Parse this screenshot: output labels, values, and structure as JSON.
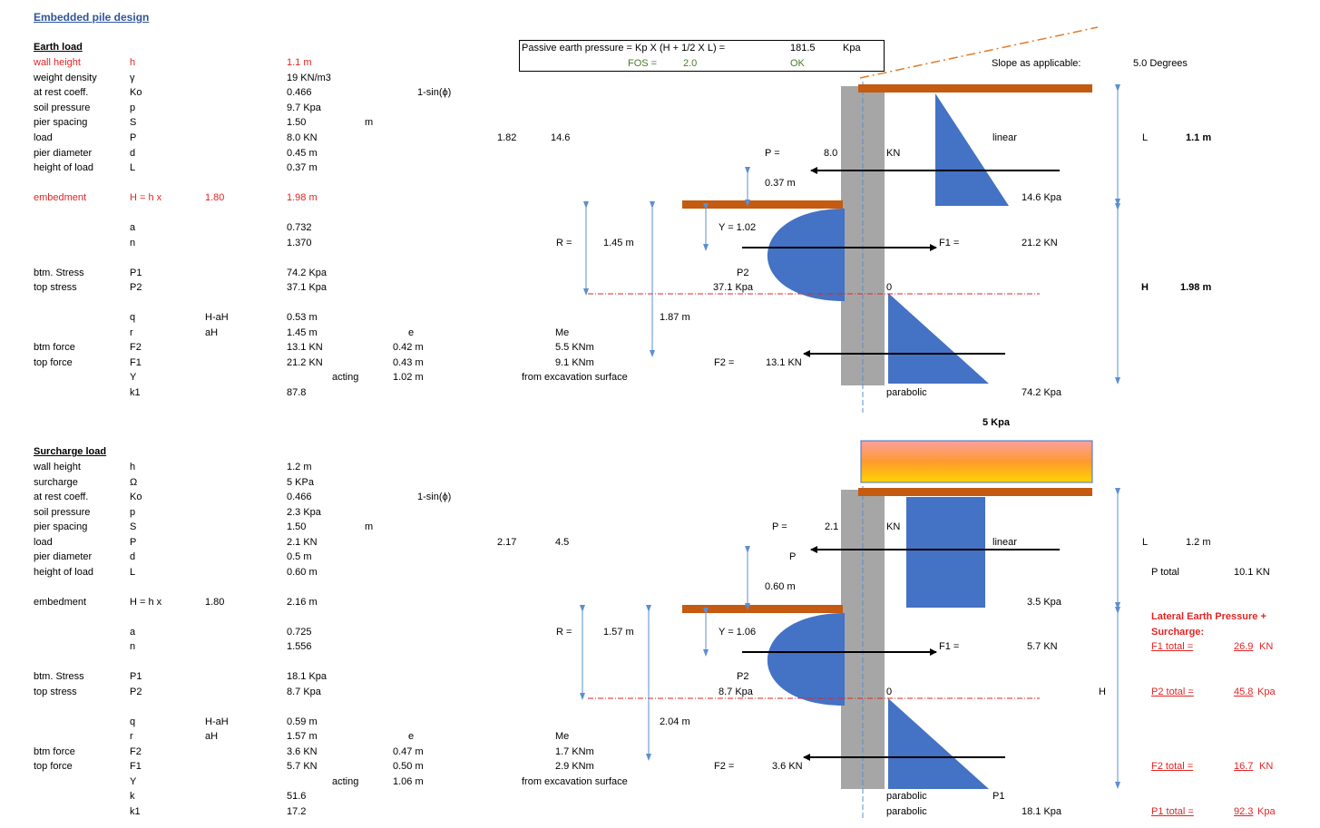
{
  "title": "Embedded pile design",
  "earth": {
    "header": "Earth load",
    "rows": [
      {
        "label": "wall height",
        "sym": "h",
        "v1": "",
        "v2": "1.1 m",
        "v3": "",
        "v4": "",
        "red": true
      },
      {
        "label": "weight density",
        "sym": "γ",
        "v1": "",
        "v2": "19 KN/m3",
        "v3": "",
        "v4": ""
      },
      {
        "label": "at rest coeff.",
        "sym": "Ko",
        "v1": "",
        "v2": "0.466",
        "v3": "",
        "v4": "1-sin(ϕ)"
      },
      {
        "label": "soil pressure",
        "sym": "p",
        "v1": "",
        "v2": "9.7 Kpa",
        "v3": "",
        "v4": ""
      },
      {
        "label": "pier spacing",
        "sym": "S",
        "v1": "",
        "v2": "1.50",
        "v3": "m",
        "v4": ""
      },
      {
        "label": "load",
        "sym": "P",
        "v1": "",
        "v2": "8.0 KN",
        "v3": "",
        "v4": ""
      },
      {
        "label": "pier diameter",
        "sym": "d",
        "v1": "",
        "v2": "0.45 m",
        "v3": "",
        "v4": ""
      },
      {
        "label": "height of load",
        "sym": "L",
        "v1": "",
        "v2": "0.37 m",
        "v3": "",
        "v4": ""
      },
      {
        "label": "embedment",
        "sym": "H = h x",
        "v1": "1.80",
        "v2": "1.98 m",
        "v3": "",
        "v4": "",
        "red": true
      },
      {
        "label": "",
        "sym": "a",
        "v1": "",
        "v2": "0.732",
        "v3": "",
        "v4": ""
      },
      {
        "label": "",
        "sym": "n",
        "v1": "",
        "v2": "1.370",
        "v3": "",
        "v4": ""
      },
      {
        "label": "btm. Stress",
        "sym": "P1",
        "v1": "",
        "v2": "74.2 Kpa",
        "v3": "",
        "v4": ""
      },
      {
        "label": "top stress",
        "sym": "P2",
        "v1": "",
        "v2": "37.1 Kpa",
        "v3": "",
        "v4": ""
      },
      {
        "label": "",
        "sym": "q",
        "v1": "H-aH",
        "v2": "0.53 m",
        "v3": "",
        "v4": ""
      },
      {
        "label": "",
        "sym": "r",
        "v1": "aH",
        "v2": "1.45 m",
        "v3": "",
        "v4": "e"
      },
      {
        "label": "btm force",
        "sym": "F2",
        "v1": "",
        "v2": "13.1 KN",
        "v3": "",
        "v4": "0.42 m"
      },
      {
        "label": "top force",
        "sym": "F1",
        "v1": "",
        "v2": "21.2 KN",
        "v3": "",
        "v4": "0.43 m"
      },
      {
        "label": "",
        "sym": "Y",
        "v1": "",
        "v2": "",
        "v3": "acting",
        "v4": "1.02 m"
      },
      {
        "label": "",
        "sym": "k1",
        "v1": "",
        "v2": "87.8",
        "v3": "",
        "v4": ""
      }
    ],
    "mid": {
      "c1": "1.82",
      "c2": "14.6",
      "me_label": "Me",
      "me1": "5.5 KNm",
      "me2": "9.1 KNm",
      "from_exc": "from excavation surface"
    },
    "passive": {
      "formula": "Passive earth pressure = Kp X (H + 1/2 X L) =",
      "value": "181.5",
      "unit": "Kpa",
      "fos_label": "FOS =",
      "fos_value": "2.0",
      "ok": "OK"
    },
    "diagram": {
      "slope_label": "Slope as applicable:",
      "slope_value": "5.0 Degrees",
      "linear": "linear",
      "kpa_top": "14.6 Kpa",
      "p_label": "P =",
      "p_value": "8.0",
      "p_unit": "KN",
      "l_dim": "0.37 m",
      "r_label": "R =",
      "r_value": "1.45 m",
      "y_label": "Y = 1.02",
      "f1_label": "F1 =",
      "f1_value": "21.2 KN",
      "p2_label": "P2",
      "p2_value": "37.1 Kpa",
      "zero": "0",
      "dim_187": "1.87 m",
      "f2_label": "F2 =",
      "f2_value": "13.1 KN",
      "parabolic": "parabolic",
      "p1_value": "74.2 Kpa",
      "L_label": "L",
      "L_value": "1.1 m",
      "H_label": "H",
      "H_value": "1.98 m"
    }
  },
  "surcharge": {
    "header": "Surcharge load",
    "rows": [
      {
        "label": "wall height",
        "sym": "h",
        "v1": "",
        "v2": "1.2 m",
        "v3": "",
        "v4": ""
      },
      {
        "label": "surcharge",
        "sym": "Ω",
        "v1": "",
        "v2": "5 KPa",
        "v3": "",
        "v4": ""
      },
      {
        "label": "at rest coeff.",
        "sym": "Ko",
        "v1": "",
        "v2": "0.466",
        "v3": "",
        "v4": "1-sin(ϕ)"
      },
      {
        "label": "soil pressure",
        "sym": "p",
        "v1": "",
        "v2": "2.3 Kpa",
        "v3": "",
        "v4": ""
      },
      {
        "label": "pier spacing",
        "sym": "S",
        "v1": "",
        "v2": "1.50",
        "v3": "m",
        "v4": ""
      },
      {
        "label": "load",
        "sym": "P",
        "v1": "",
        "v2": "2.1 KN",
        "v3": "",
        "v4": ""
      },
      {
        "label": "pier diameter",
        "sym": "d",
        "v1": "",
        "v2": "0.5 m",
        "v3": "",
        "v4": ""
      },
      {
        "label": "height of load",
        "sym": "L",
        "v1": "",
        "v2": "0.60 m",
        "v3": "",
        "v4": ""
      },
      {
        "label": "embedment",
        "sym": "H = h x",
        "v1": "1.80",
        "v2": "2.16 m",
        "v3": "",
        "v4": ""
      },
      {
        "label": "",
        "sym": "a",
        "v1": "",
        "v2": "0.725",
        "v3": "",
        "v4": ""
      },
      {
        "label": "",
        "sym": "n",
        "v1": "",
        "v2": "1.556",
        "v3": "",
        "v4": ""
      },
      {
        "label": "btm. Stress",
        "sym": "P1",
        "v1": "",
        "v2": "18.1 Kpa",
        "v3": "",
        "v4": ""
      },
      {
        "label": "top stress",
        "sym": "P2",
        "v1": "",
        "v2": "8.7 Kpa",
        "v3": "",
        "v4": ""
      },
      {
        "label": "",
        "sym": "q",
        "v1": "H-aH",
        "v2": "0.59 m",
        "v3": "",
        "v4": ""
      },
      {
        "label": "",
        "sym": "r",
        "v1": "aH",
        "v2": "1.57 m",
        "v3": "",
        "v4": "e"
      },
      {
        "label": "btm force",
        "sym": "F2",
        "v1": "",
        "v2": "3.6 KN",
        "v3": "",
        "v4": "0.47 m"
      },
      {
        "label": "top force",
        "sym": "F1",
        "v1": "",
        "v2": "5.7 KN",
        "v3": "",
        "v4": "0.50 m"
      },
      {
        "label": "",
        "sym": "Y",
        "v1": "",
        "v2": "",
        "v3": "acting",
        "v4": "1.06 m"
      },
      {
        "label": "",
        "sym": "k",
        "v1": "",
        "v2": "51.6",
        "v3": "",
        "v4": ""
      },
      {
        "label": "",
        "sym": "k1",
        "v1": "",
        "v2": "17.2",
        "v3": "",
        "v4": ""
      }
    ],
    "mid": {
      "c1": "2.17",
      "c2": "4.5",
      "me_label": "Me",
      "me1": "1.7 KNm",
      "me2": "2.9 KNm",
      "from_exc": "from excavation surface"
    },
    "diagram": {
      "surcharge_kpa": "5 Kpa",
      "p_label": "P =",
      "p_value": "2.1",
      "p_unit": "KN",
      "p_letter": "P",
      "linear": "linear",
      "kpa_top": "3.5 Kpa",
      "l_dim": "0.60 m",
      "r_label": "R =",
      "r_value": "1.57 m",
      "y_label": "Y = 1.06",
      "f1_label": "F1 =",
      "f1_value": "5.7 KN",
      "p2_label": "P2",
      "p2_value": "8.7 Kpa",
      "zero": "0",
      "dim_204": "2.04 m",
      "f2_label": "F2 =",
      "f2_value": "3.6 KN",
      "parabolic1": "parabolic",
      "p1_letter": "P1",
      "parabolic2": "parabolic",
      "p1_value": "18.1 Kpa",
      "L_label": "L",
      "L_value": "1.2 m",
      "ptotal_label": "P total",
      "ptotal_value": "10.1 KN",
      "H_label": "H",
      "lat_title1": "Lateral Earth Pressure +",
      "lat_title2": "Surcharge:",
      "f1_total_label": "F1 total =",
      "f1_total_value": "26.9",
      "f1_total_unit": "KN",
      "p2_total_label": "P2 total =",
      "p2_total_value": "45.8",
      "p2_total_unit": "Kpa",
      "f2_total_label": "F2 total =",
      "f2_total_value": "16.7",
      "f2_total_unit": "KN",
      "p1_total_label": "P1 total =",
      "p1_total_value": "92.3",
      "p1_total_unit": "Kpa"
    }
  },
  "colors": {
    "wall": "#a6a6a6",
    "beam": "#c55a11",
    "load": "#4472c4",
    "dim": "#5b8fd1",
    "red": "#e32424"
  }
}
